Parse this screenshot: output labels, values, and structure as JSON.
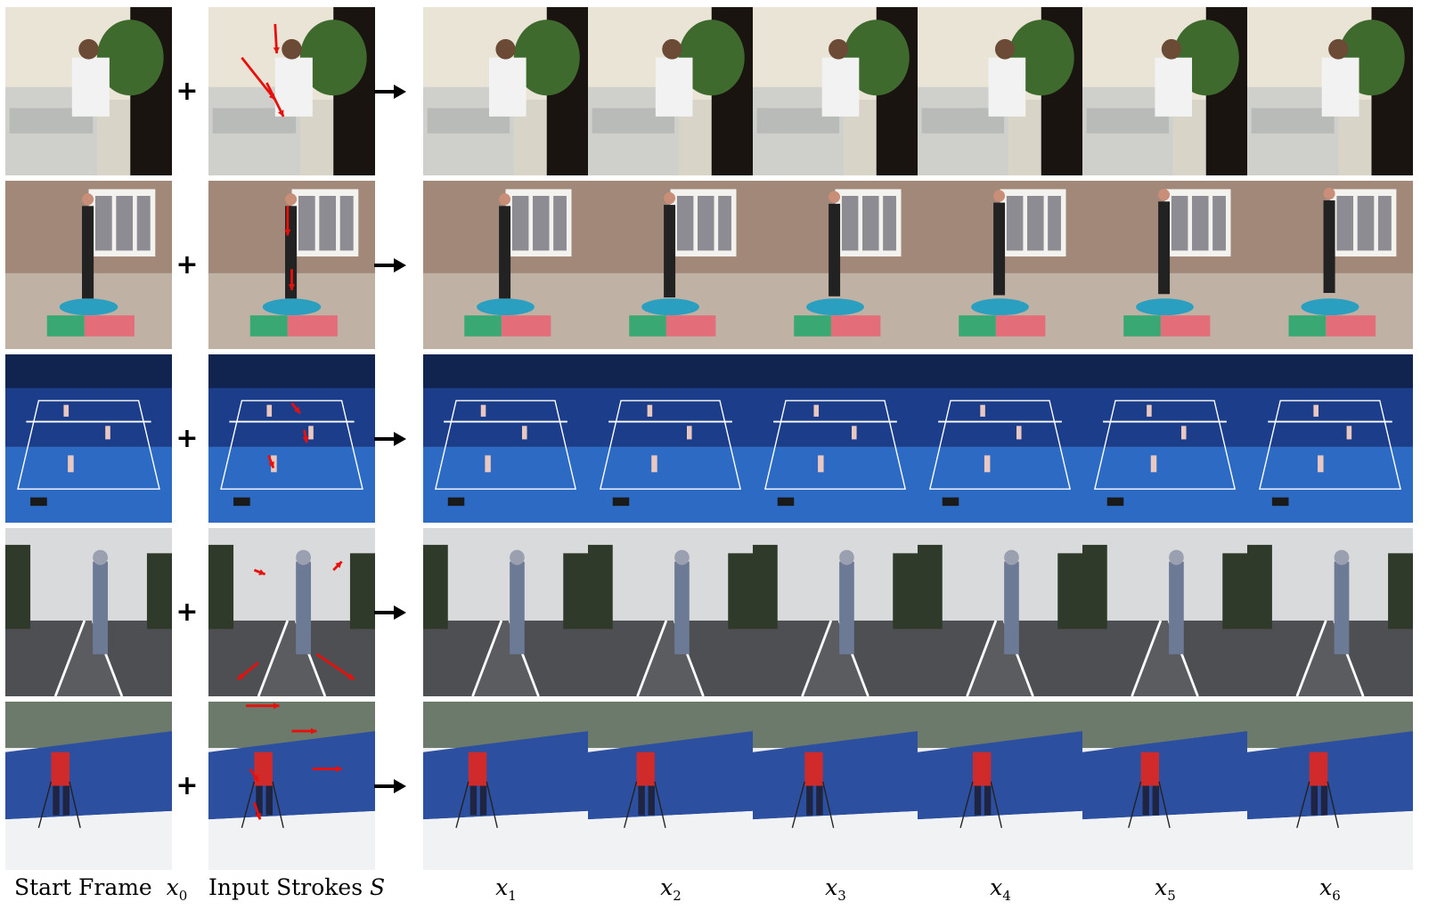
{
  "captions": {
    "start_frame": "Start Frame",
    "start_frame_var": "x",
    "start_frame_sub": "0",
    "input_strokes": "Input Strokes",
    "input_strokes_var": "S",
    "outputs": [
      {
        "var": "x",
        "sub": "1"
      },
      {
        "var": "x",
        "sub": "2"
      },
      {
        "var": "x",
        "sub": "3"
      },
      {
        "var": "x",
        "sub": "4"
      },
      {
        "var": "x",
        "sub": "5"
      },
      {
        "var": "x",
        "sub": "6"
      }
    ]
  },
  "rows": [
    {
      "scene": "office-copier",
      "sky": "#e9e4d6",
      "ground": "#d8d4c8",
      "accent": "#3f6a2e",
      "figure": "#f2f2f2"
    },
    {
      "scene": "trampoline",
      "sky": "#a18878",
      "ground": "#bfb2a5",
      "accent": "#2a9fbf",
      "figure": "#222222"
    },
    {
      "scene": "tennis-court",
      "sky": "#1c3d8a",
      "ground": "#2c6ac4",
      "accent": "#ffffff",
      "figure": "#e8c8c0"
    },
    {
      "scene": "motorcycle-road",
      "sky": "#d9dadb",
      "ground": "#4d4f52",
      "accent": "#2f3a2b",
      "figure": "#6d7a96"
    },
    {
      "scene": "skier-snow",
      "sky": "#eef0f3",
      "ground": "#f1f2f4",
      "accent": "#2d4fa0",
      "figure": "#d12a2a"
    }
  ],
  "stroke_color": "#e8100d"
}
